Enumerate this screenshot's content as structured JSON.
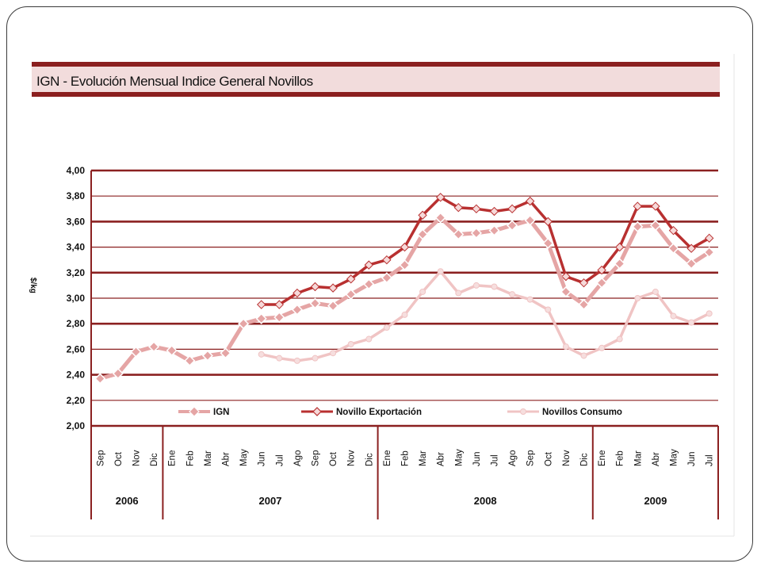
{
  "header": {
    "title": "IGN - Evolución Mensual Indice General Novillos"
  },
  "colors": {
    "frame": "#8b1f1f",
    "title_band": "#f2dcdc",
    "grid": "#8b2020",
    "ign": "#e5a5a5",
    "exportacion": "#b83030",
    "consumo": "#f0c4c4"
  },
  "chart_data": {
    "type": "line",
    "title": "IGN - Evolución Mensual Indice General Novillos",
    "ylabel": "$/kg",
    "ylim": [
      2.0,
      4.0
    ],
    "yticks": [
      "2,00",
      "2,20",
      "2,40",
      "2,60",
      "2,80",
      "3,00",
      "3,20",
      "3,40",
      "3,60",
      "3,80",
      "4,00"
    ],
    "grid": true,
    "legend_position": "bottom",
    "categories": [
      "Sep",
      "Oct",
      "Nov",
      "Dic",
      "Ene",
      "Feb",
      "Mar",
      "Abr",
      "May",
      "Jun",
      "Jul",
      "Ago",
      "Sep",
      "Oct",
      "Nov",
      "Dic",
      "Ene",
      "Feb",
      "Mar",
      "Abr",
      "May",
      "Jun",
      "Jul",
      "Ago",
      "Sep",
      "Oct",
      "Nov",
      "Dic",
      "Ene",
      "Feb",
      "Mar",
      "Abr",
      "May",
      "Jun",
      "Jul"
    ],
    "month_labels": [
      "Sep",
      "Oct",
      "Nov",
      "Dic",
      "Ene",
      "Feb",
      "Mar",
      "Abr",
      "May",
      "Jun",
      "Jul",
      "Ago",
      "Sep",
      "Oct",
      "Nov",
      "Dic",
      "Ene",
      "Feb",
      "Mar",
      "Abr",
      "May",
      "Jun",
      "Jul",
      "Ago",
      "Sep",
      "Oct",
      "Nov",
      "Dic",
      "Ene",
      "Feb",
      "Mar",
      "Abr",
      "May",
      "Jun",
      "Jul"
    ],
    "year_groups": [
      {
        "label": "2006",
        "start": 0,
        "count": 4
      },
      {
        "label": "2007",
        "start": 4,
        "count": 12
      },
      {
        "label": "2008",
        "start": 16,
        "count": 12
      },
      {
        "label": "2009",
        "start": 28,
        "count": 7
      }
    ],
    "series": [
      {
        "name": "IGN",
        "values": [
          2.37,
          2.41,
          2.58,
          2.62,
          2.59,
          2.51,
          2.55,
          2.57,
          2.8,
          2.84,
          2.85,
          2.91,
          2.96,
          2.94,
          3.03,
          3.11,
          3.16,
          3.26,
          3.5,
          3.63,
          3.5,
          3.51,
          3.53,
          3.57,
          3.61,
          3.43,
          3.05,
          2.95,
          3.12,
          3.27,
          3.56,
          3.57,
          3.39,
          3.27,
          3.36
        ]
      },
      {
        "name": "Novillo Exportación",
        "values": [
          null,
          null,
          null,
          null,
          null,
          null,
          null,
          null,
          null,
          2.95,
          2.95,
          3.04,
          3.09,
          3.08,
          3.15,
          3.26,
          3.3,
          3.4,
          3.65,
          3.79,
          3.71,
          3.7,
          3.68,
          3.7,
          3.76,
          3.6,
          3.17,
          3.12,
          3.22,
          3.4,
          3.72,
          3.72,
          3.53,
          3.39,
          3.47
        ]
      },
      {
        "name": "Novillos Consumo",
        "values": [
          null,
          null,
          null,
          null,
          null,
          null,
          null,
          null,
          null,
          2.56,
          2.53,
          2.51,
          2.53,
          2.57,
          2.64,
          2.68,
          2.77,
          2.87,
          3.05,
          3.21,
          3.04,
          3.1,
          3.09,
          3.03,
          2.99,
          2.91,
          2.62,
          2.55,
          2.61,
          2.68,
          3.0,
          3.05,
          2.86,
          2.81,
          2.88
        ]
      }
    ]
  }
}
